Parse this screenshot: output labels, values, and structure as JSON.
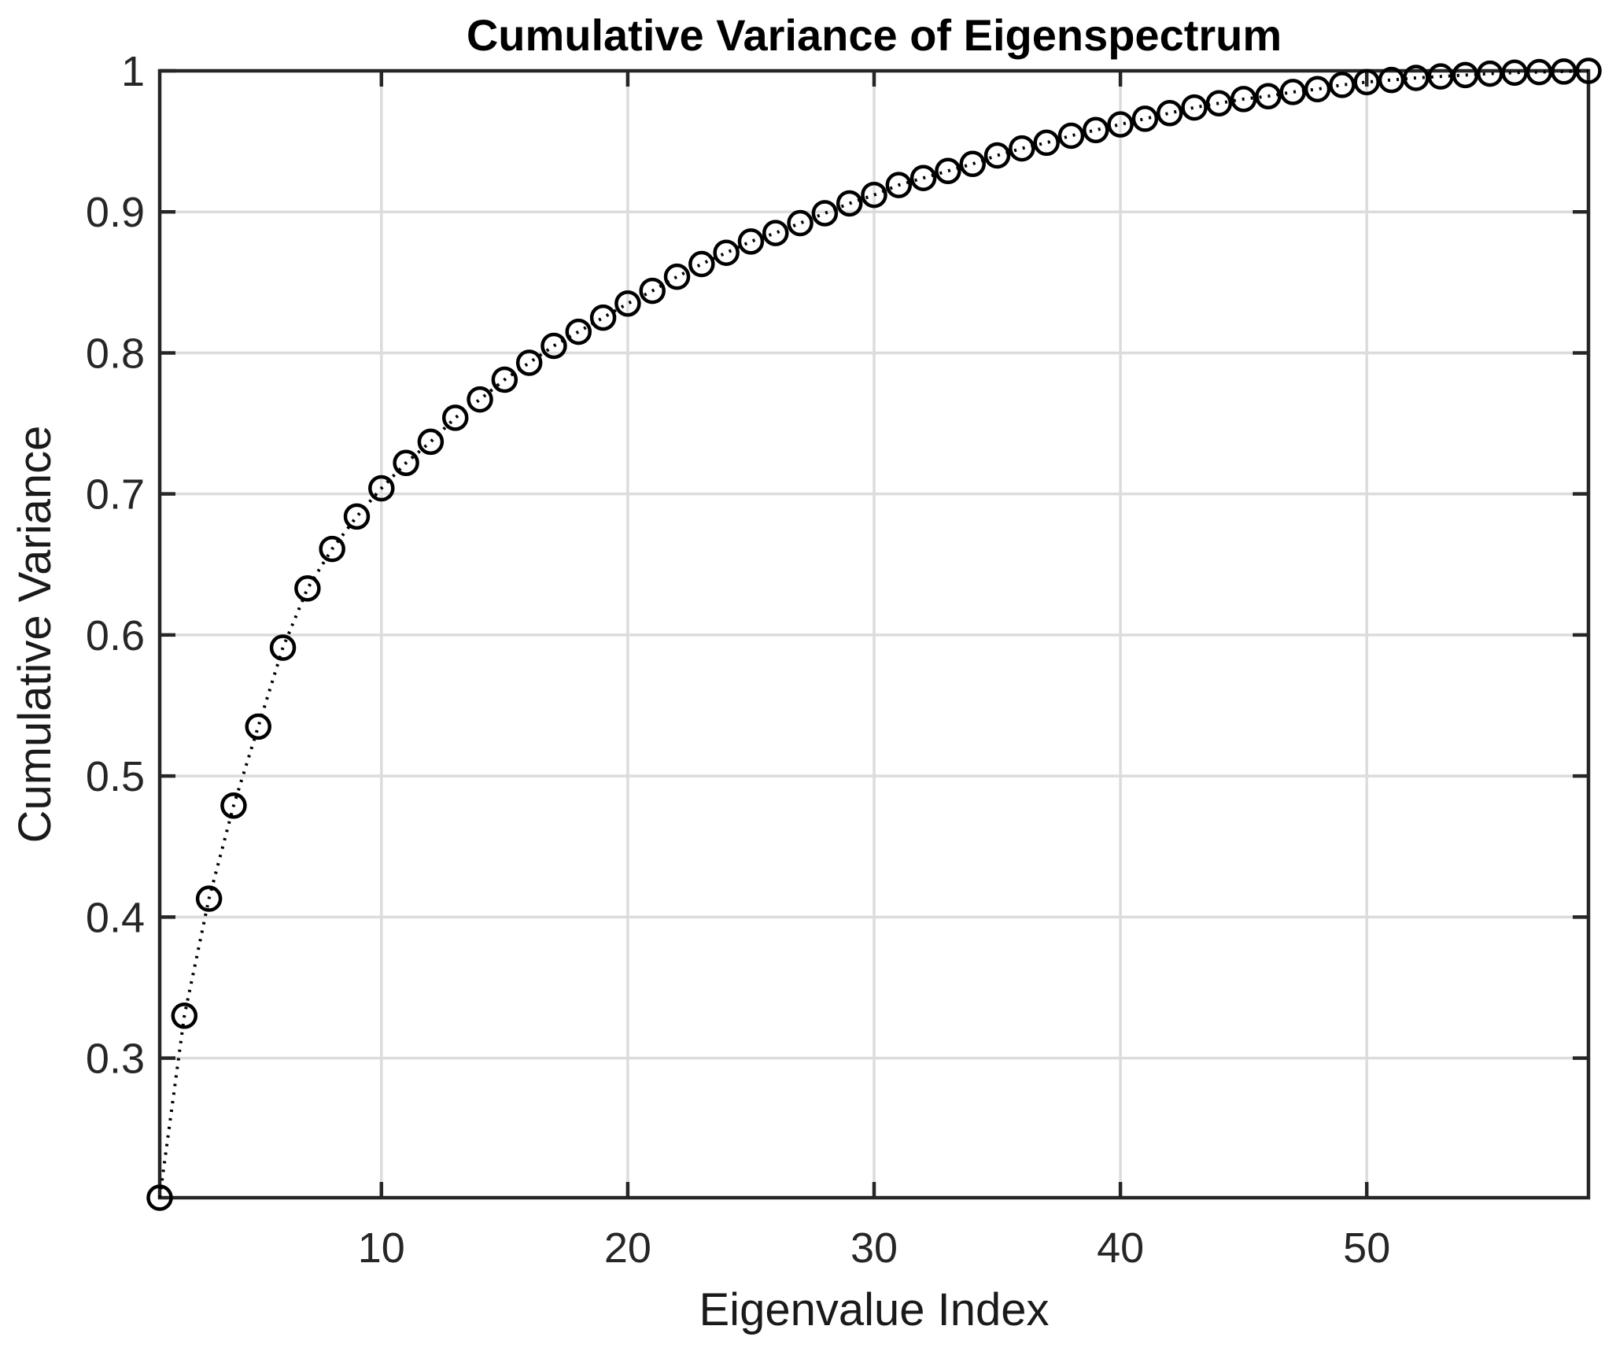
{
  "page": {
    "background": "#ffffff"
  },
  "style": {
    "axis_color": "#262626",
    "grid_color": "#dcdcdc",
    "data_color": "#000000",
    "tick_label_color": "#262626",
    "text_color": "#000000"
  },
  "chart_data": {
    "type": "line",
    "title": "Cumulative Variance of Eigenspectrum",
    "xlabel": "Eigenvalue Index",
    "ylabel": "Cumulative Variance",
    "grid": true,
    "legend_position": "none",
    "line_style": "dotted",
    "marker": "open-circle",
    "xlim": [
      1,
      59
    ],
    "ylim": [
      0.201,
      1.0
    ],
    "xticks": [
      10,
      20,
      30,
      40,
      50
    ],
    "xtick_labels": [
      "10",
      "20",
      "30",
      "40",
      "50"
    ],
    "yticks": [
      0.3,
      0.4,
      0.5,
      0.6,
      0.7,
      0.8,
      0.9,
      1.0
    ],
    "ytick_labels": [
      "0.3",
      "0.4",
      "0.5",
      "0.6",
      "0.7",
      "0.8",
      "0.9",
      "1"
    ],
    "x": [
      1,
      2,
      3,
      4,
      5,
      6,
      7,
      8,
      9,
      10,
      11,
      12,
      13,
      14,
      15,
      16,
      17,
      18,
      19,
      20,
      21,
      22,
      23,
      24,
      25,
      26,
      27,
      28,
      29,
      30,
      31,
      32,
      33,
      34,
      35,
      36,
      37,
      38,
      39,
      40,
      41,
      42,
      43,
      44,
      45,
      46,
      47,
      48,
      49,
      50,
      51,
      52,
      53,
      54,
      55,
      56,
      57,
      58,
      59
    ],
    "series": [
      {
        "name": "cumulative-variance",
        "values": [
          0.201,
          0.33,
          0.413,
          0.479,
          0.535,
          0.591,
          0.633,
          0.661,
          0.684,
          0.704,
          0.722,
          0.737,
          0.754,
          0.767,
          0.781,
          0.793,
          0.805,
          0.815,
          0.825,
          0.835,
          0.844,
          0.854,
          0.863,
          0.871,
          0.879,
          0.885,
          0.892,
          0.899,
          0.906,
          0.912,
          0.919,
          0.924,
          0.929,
          0.934,
          0.94,
          0.945,
          0.949,
          0.954,
          0.958,
          0.962,
          0.966,
          0.97,
          0.974,
          0.977,
          0.98,
          0.982,
          0.985,
          0.987,
          0.99,
          0.992,
          0.9935,
          0.995,
          0.996,
          0.997,
          0.998,
          0.9987,
          0.9991,
          0.9995,
          1.0
        ]
      }
    ]
  }
}
